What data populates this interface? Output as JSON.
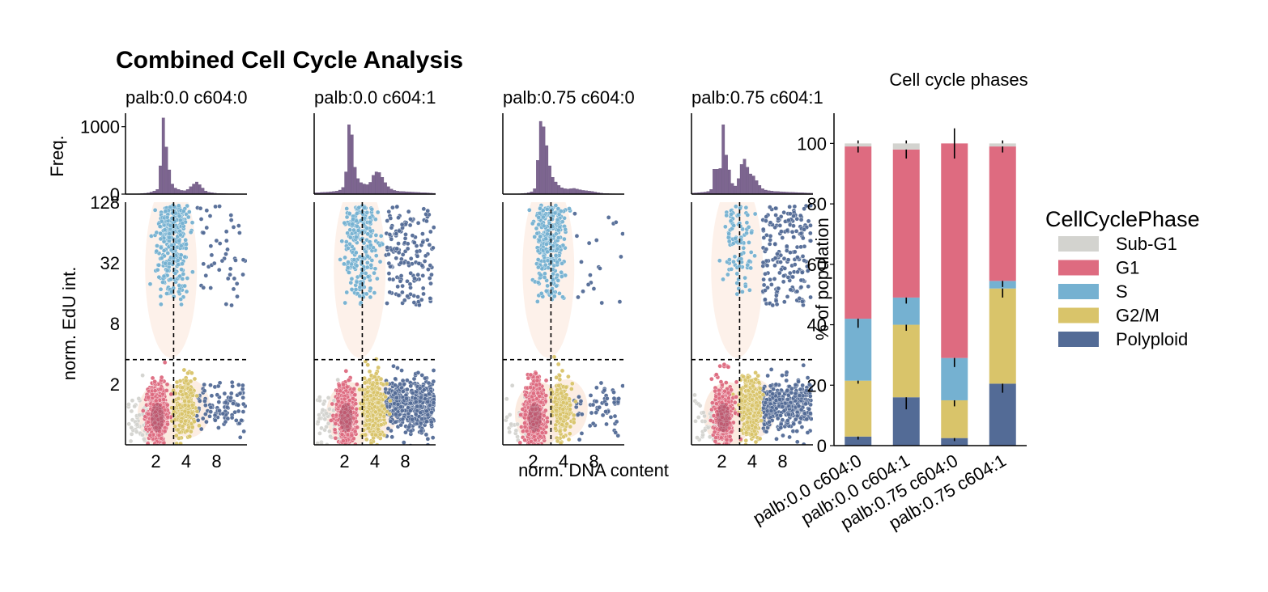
{
  "figure": {
    "title": "Combined Cell Cycle Analysis",
    "x_shared_label": "norm. DNA content"
  },
  "colors": {
    "hist": "#7d6590",
    "Sub-G1": "#d3d3cf",
    "G1": "#de6b80",
    "S": "#75b1d1",
    "G2/M": "#d9c46a",
    "Polyploid": "#536b96",
    "density": "#fbe8dc"
  },
  "chart_data": [
    {
      "type": "histogram",
      "panel": "palb:0.0 c604:0",
      "title": "palb:0.0 c604:0",
      "ylabel": "Freq.",
      "yticks": [
        0,
        1000
      ],
      "ylim": [
        0,
        1200
      ],
      "x_log2_range": [
        0,
        4
      ],
      "bins_log2_start": 0,
      "bins_log2_step": 0.1,
      "values": [
        0,
        0,
        2,
        3,
        5,
        8,
        12,
        18,
        30,
        45,
        70,
        420,
        1130,
        700,
        360,
        150,
        90,
        70,
        55,
        50,
        70,
        110,
        150,
        180,
        140,
        90,
        45,
        28,
        20,
        14,
        10,
        8,
        7,
        6,
        5,
        5,
        4,
        4,
        3,
        3
      ]
    },
    {
      "type": "histogram",
      "panel": "palb:0.0 c604:1",
      "title": "palb:0.0 c604:1",
      "ylabel": "",
      "ylim": [
        0,
        1200
      ],
      "x_log2_range": [
        0,
        4
      ],
      "bins_log2_start": 0,
      "bins_log2_step": 0.1,
      "values": [
        20,
        22,
        25,
        28,
        30,
        35,
        40,
        45,
        60,
        100,
        330,
        1030,
        880,
        400,
        230,
        170,
        150,
        140,
        175,
        280,
        330,
        320,
        250,
        170,
        110,
        75,
        55,
        45,
        40,
        38,
        35,
        32,
        30,
        28,
        25,
        22,
        20,
        18,
        15,
        12
      ]
    },
    {
      "type": "histogram",
      "panel": "palb:0.75 c604:0",
      "title": "palb:0.75 c604:0",
      "ylabel": "",
      "ylim": [
        0,
        1200
      ],
      "x_log2_range": [
        0,
        4
      ],
      "bins_log2_start": 0,
      "bins_log2_step": 0.1,
      "values": [
        0,
        0,
        1,
        2,
        3,
        5,
        8,
        12,
        20,
        35,
        80,
        500,
        1080,
        1000,
        720,
        420,
        250,
        180,
        130,
        95,
        80,
        75,
        80,
        85,
        75,
        65,
        55,
        50,
        45,
        40,
        30,
        22,
        15,
        10,
        8,
        6,
        5,
        4,
        3,
        2
      ]
    },
    {
      "type": "histogram",
      "panel": "palb:0.75 c604:1",
      "title": "palb:0.75 c604:1",
      "ylabel": "",
      "ylim": [
        0,
        1200
      ],
      "x_log2_range": [
        0,
        4
      ],
      "bins_log2_start": 0,
      "bins_log2_step": 0.1,
      "values": [
        15,
        18,
        22,
        25,
        30,
        40,
        70,
        370,
        370,
        380,
        1030,
        580,
        360,
        160,
        120,
        230,
        440,
        520,
        400,
        300,
        270,
        200,
        130,
        80,
        60,
        50,
        45,
        40,
        38,
        35,
        32,
        30,
        28,
        26,
        24,
        22,
        20,
        18,
        16,
        14
      ]
    },
    {
      "type": "scatter",
      "panels": [
        "palb:0.0 c604:0",
        "palb:0.0 c604:1",
        "palb:0.75 c604:0",
        "palb:0.75 c604:1"
      ],
      "xlabel": "norm. DNA content",
      "ylabel": "norm. EdU int.",
      "x_scale": "log2",
      "y_scale": "log2",
      "xticks": [
        2,
        4,
        8
      ],
      "yticks": [
        2,
        8,
        32,
        128
      ],
      "x_log2_range": [
        0,
        4
      ],
      "y_log2_range": [
        -1,
        7
      ],
      "gate_dna": 3,
      "gate_edu": 3.5,
      "phase_counts_estimate": [
        {
          "Sub-G1": 60,
          "G1": 750,
          "S": 300,
          "G2/M": 250,
          "Polyploid": 150
        },
        {
          "Sub-G1": 60,
          "G1": 600,
          "S": 250,
          "G2/M": 450,
          "Polyploid": 600
        },
        {
          "Sub-G1": 30,
          "G1": 900,
          "S": 300,
          "G2/M": 200,
          "Polyploid": 80
        },
        {
          "Sub-G1": 40,
          "G1": 500,
          "S": 100,
          "G2/M": 450,
          "Polyploid": 550
        }
      ]
    },
    {
      "type": "stacked_bar",
      "title": "Cell cycle phases",
      "ylabel": "% of population",
      "yticks": [
        0,
        20,
        40,
        60,
        80,
        100
      ],
      "ylim": [
        0,
        110
      ],
      "categories": [
        "palb:0.0 c604:0",
        "palb:0.0 c604:1",
        "palb:0.75 c604:0",
        "palb:0.75 c604:1"
      ],
      "series": [
        {
          "name": "Polyploid",
          "values": [
            3,
            16,
            2.5,
            20.5
          ],
          "err": [
            1,
            4,
            1,
            3
          ]
        },
        {
          "name": "G2/M",
          "values": [
            18.5,
            24,
            12.5,
            31.5
          ],
          "err": [
            1,
            2,
            2,
            3
          ]
        },
        {
          "name": "S",
          "values": [
            20.5,
            9,
            14,
            2.5
          ],
          "err": [
            3,
            2,
            3,
            2
          ]
        },
        {
          "name": "G1",
          "values": [
            57,
            49,
            71,
            44.5
          ],
          "err": [
            2,
            3,
            5,
            2
          ]
        },
        {
          "name": "Sub-G1",
          "values": [
            1,
            2,
            0,
            1
          ],
          "err": [
            0,
            0,
            0,
            0
          ]
        }
      ]
    }
  ],
  "legend": {
    "title": "CellCyclePhase",
    "items": [
      "Sub-G1",
      "G1",
      "S",
      "G2/M",
      "Polyploid"
    ]
  }
}
